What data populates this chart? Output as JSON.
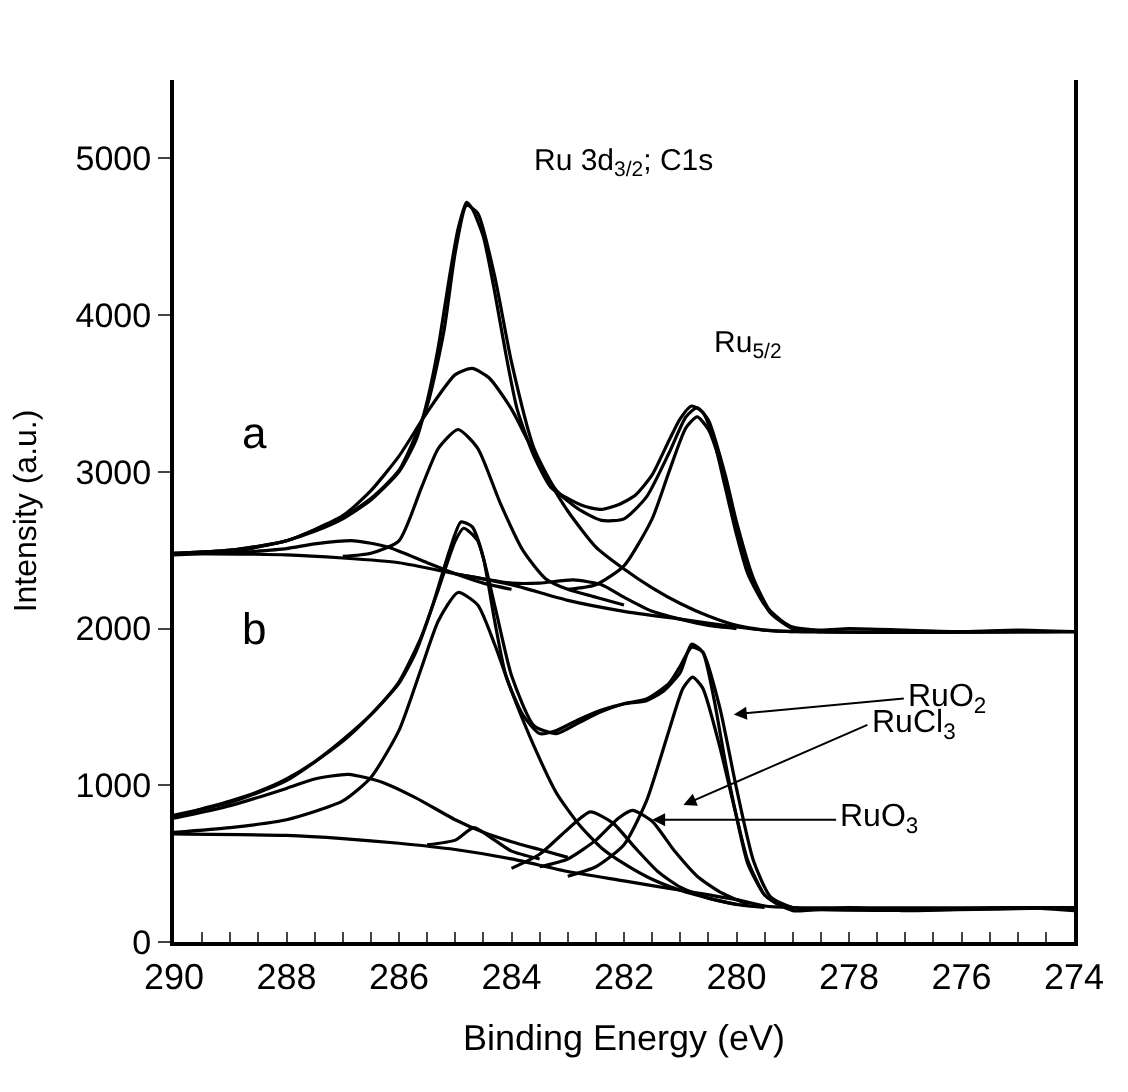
{
  "chart_data": {
    "type": "line",
    "xlabel": "Binding Energy (eV)",
    "ylabel": "Intensity (a.u.)",
    "xlim": [
      290,
      274
    ],
    "ylim": [
      0,
      5500
    ],
    "xticks": [
      290,
      {
        "value": 289.5,
        "label": null
      },
      {
        "value": 289,
        "label": null
      },
      {
        "value": 288.5,
        "label": null
      },
      288,
      {
        "value": 287.5,
        "label": null
      },
      {
        "value": 287,
        "label": null
      },
      {
        "value": 286.5,
        "label": null
      },
      286,
      {
        "value": 285.5,
        "label": null
      },
      {
        "value": 285,
        "label": null
      },
      {
        "value": 284.5,
        "label": null
      },
      284,
      {
        "value": 283.5,
        "label": null
      },
      {
        "value": 283,
        "label": null
      },
      {
        "value": 282.5,
        "label": null
      },
      282,
      {
        "value": 281.5,
        "label": null
      },
      {
        "value": 281,
        "label": null
      },
      {
        "value": 280.5,
        "label": null
      },
      280,
      {
        "value": 279.5,
        "label": null
      },
      {
        "value": 279,
        "label": null
      },
      {
        "value": 278.5,
        "label": null
      },
      278,
      {
        "value": 277.5,
        "label": null
      },
      {
        "value": 277,
        "label": null
      },
      {
        "value": 276.5,
        "label": null
      },
      276,
      {
        "value": 275.5,
        "label": null
      },
      {
        "value": 275,
        "label": null
      },
      {
        "value": 274.5,
        "label": null
      },
      274
    ],
    "yticks": [
      0,
      1000,
      2000,
      3000,
      4000,
      5000
    ],
    "marker": "none",
    "line_style": "solid",
    "annotations": [
      "Ru 3d$_{3/2}$; C1s",
      "Ru$_{5/2}$",
      "a",
      "b",
      "RuO$_{2}$",
      "RuCl$_{3}$",
      {
        "text": "RuO$_{3}$",
        "x": 281.5,
        "y": 780
      }
    ],
    "series": [
      {
        "color": "#000000",
        "x": [
          290,
          289,
          288.5,
          288,
          287.5,
          287,
          286.5,
          286,
          285.7,
          285.5,
          285.3,
          285.1,
          284.95,
          284.8,
          284.7,
          284.5,
          284.3,
          284.1,
          283.9,
          283.6,
          283.3,
          283,
          282.7,
          282.4,
          282.1,
          281.8,
          281.5,
          281.2,
          281,
          280.8,
          280.6,
          280.4,
          280.2,
          280,
          279.8,
          279.5,
          279.2,
          279,
          278.5,
          278,
          277,
          276,
          275,
          274
        ],
        "values": [
          2470,
          2490,
          2520,
          2560,
          2620,
          2700,
          2820,
          3000,
          3200,
          3450,
          3800,
          4250,
          4550,
          4720,
          4680,
          4500,
          4150,
          3750,
          3400,
          3100,
          2900,
          2830,
          2780,
          2760,
          2790,
          2850,
          2980,
          3200,
          3340,
          3420,
          3380,
          3200,
          2900,
          2600,
          2350,
          2150,
          2050,
          2010,
          1990,
          2000,
          1990,
          1980,
          1990,
          1980
        ]
      },
      {
        "color": "#000000",
        "x": [
          290,
          289,
          288,
          287,
          286.5,
          286,
          285.5,
          285.2,
          285,
          284.8,
          284.6,
          284.3,
          284,
          283.6,
          283.2,
          282.8,
          282.4,
          282,
          281.6,
          281.2,
          280.9,
          280.7,
          280.5,
          280.2,
          280,
          279.7,
          279.4,
          279,
          278.5,
          274
        ],
        "values": [
          2480,
          2500,
          2560,
          2710,
          2830,
          3010,
          3420,
          3900,
          4400,
          4700,
          4650,
          4250,
          3700,
          3150,
          2880,
          2760,
          2690,
          2700,
          2840,
          3120,
          3350,
          3410,
          3330,
          2980,
          2680,
          2320,
          2110,
          2000,
          1980,
          1980
        ]
      },
      {
        "color": "#000000",
        "x": [
          290,
          289,
          288,
          287,
          286.5,
          286,
          285.5,
          285,
          284.7,
          284.4,
          284,
          283.5,
          283,
          282.5,
          282,
          281.5,
          281,
          280.5,
          280,
          279.5,
          279
        ],
        "values": [
          2480,
          2500,
          2560,
          2720,
          2880,
          3100,
          3380,
          3620,
          3660,
          3600,
          3400,
          3050,
          2750,
          2520,
          2380,
          2260,
          2160,
          2080,
          2020,
          1990,
          1980
        ]
      },
      {
        "color": "#000000",
        "x": [
          287,
          286.5,
          286,
          285.6,
          285.3,
          284.95,
          284.6,
          284.2,
          283.8,
          283.4,
          283,
          282.5,
          282
        ],
        "values": [
          2460,
          2480,
          2560,
          2900,
          3150,
          3270,
          3150,
          2800,
          2500,
          2320,
          2250,
          2200,
          2150
        ]
      },
      {
        "color": "#000000",
        "x": [
          283,
          282.5,
          282,
          281.5,
          281.2,
          280.9,
          280.7,
          280.5,
          280.2,
          280,
          279.7,
          279.4,
          279,
          278.5
        ],
        "values": [
          2250,
          2280,
          2400,
          2700,
          3000,
          3280,
          3350,
          3270,
          2950,
          2650,
          2300,
          2100,
          2000,
          1980
        ]
      },
      {
        "color": "#000000",
        "x": [
          289,
          288,
          287.5,
          286.8,
          286.2,
          285.5,
          285,
          284.5,
          284
        ],
        "values": [
          2480,
          2510,
          2540,
          2560,
          2520,
          2420,
          2350,
          2290,
          2250
        ]
      },
      {
        "color": "#000000",
        "x": [
          285,
          284,
          283.5,
          282.9,
          282.4,
          282,
          281.5,
          281,
          280.5,
          280
        ],
        "values": [
          2350,
          2290,
          2290,
          2310,
          2280,
          2200,
          2110,
          2060,
          2020,
          2000
        ]
      },
      {
        "color": "#000000",
        "x": [
          290,
          288,
          287,
          286,
          285,
          284,
          283,
          282,
          281,
          280,
          279.5,
          279,
          274
        ],
        "values": [
          2480,
          2470,
          2450,
          2420,
          2350,
          2280,
          2180,
          2110,
          2060,
          2010,
          1990,
          1980,
          1980
        ]
      },
      {
        "color": "#000000",
        "x": [
          290,
          289.5,
          289,
          288.5,
          288,
          287.5,
          287,
          286.5,
          286,
          285.7,
          285.4,
          285.1,
          284.9,
          284.7,
          284.5,
          284.3,
          284.1,
          283.8,
          283.5,
          283.2,
          282.8,
          282.4,
          282,
          281.6,
          281.3,
          281,
          280.8,
          280.6,
          280.4,
          280.2,
          280,
          279.8,
          279.5,
          279.2,
          279,
          278,
          277,
          276,
          275,
          274
        ],
        "values": [
          800,
          850,
          900,
          960,
          1040,
          1150,
          1290,
          1450,
          1650,
          1850,
          2150,
          2500,
          2680,
          2650,
          2450,
          2050,
          1700,
          1450,
          1330,
          1350,
          1420,
          1480,
          1520,
          1540,
          1600,
          1720,
          1900,
          1850,
          1550,
          1150,
          800,
          500,
          300,
          230,
          200,
          220,
          200,
          210,
          220,
          200
        ]
      },
      {
        "color": "#000000",
        "x": [
          290,
          289,
          288,
          287,
          286.5,
          286,
          285.6,
          285.3,
          285,
          284.85,
          284.6,
          284.3,
          284,
          283.6,
          283.2,
          282.8,
          282.4,
          282,
          281.6,
          281.2,
          281,
          280.8,
          280.6,
          280.3,
          280,
          279.7,
          279.4,
          279,
          274
        ],
        "values": [
          810,
          890,
          1030,
          1280,
          1450,
          1660,
          1950,
          2250,
          2560,
          2640,
          2560,
          2150,
          1700,
          1380,
          1330,
          1400,
          1470,
          1520,
          1550,
          1650,
          1760,
          1880,
          1850,
          1500,
          980,
          520,
          290,
          220,
          220
        ]
      },
      {
        "color": "#000000",
        "x": [
          290,
          289,
          288,
          287,
          286.5,
          286,
          285.6,
          285.3,
          284.95,
          284.6,
          284.3,
          284,
          283.6,
          283.2,
          282.8,
          282.4,
          282,
          281.5,
          281,
          280.5,
          280,
          279.5
        ],
        "values": [
          700,
          730,
          780,
          900,
          1050,
          1350,
          1750,
          2050,
          2230,
          2150,
          1900,
          1600,
          1250,
          950,
          750,
          600,
          500,
          400,
          330,
          280,
          240,
          220
        ]
      },
      {
        "color": "#000000",
        "x": [
          290,
          289,
          288,
          287.5,
          286.9,
          286.3,
          285.7,
          285,
          284.5,
          284,
          283.5,
          283
        ],
        "values": [
          790,
          870,
          980,
          1040,
          1070,
          1020,
          920,
          780,
          700,
          640,
          590,
          540
        ]
      },
      {
        "color": "#000000",
        "x": [
          285.5,
          285,
          284.67,
          284.3,
          284,
          283.5
        ],
        "values": [
          620,
          650,
          730,
          650,
          580,
          530
        ]
      },
      {
        "color": "#000000",
        "x": [
          284,
          283.5,
          283,
          282.6,
          282.2,
          281.8,
          281.4,
          281,
          280.5,
          280
        ],
        "values": [
          470,
          560,
          720,
          830,
          760,
          600,
          450,
          350,
          280,
          240
        ]
      },
      {
        "color": "#000000",
        "x": [
          283.5,
          283,
          282.5,
          282.1,
          281.85,
          281.5,
          281.1,
          280.7,
          280.3,
          279.8
        ],
        "values": [
          480,
          530,
          650,
          790,
          840,
          770,
          580,
          420,
          320,
          240
        ]
      },
      {
        "color": "#000000",
        "x": [
          283,
          282.5,
          282,
          281.6,
          281.2,
          280.95,
          280.78,
          280.6,
          280.3,
          280,
          279.8,
          279.5,
          279.2,
          279
        ],
        "values": [
          420,
          480,
          620,
          900,
          1350,
          1620,
          1690,
          1620,
          1250,
          800,
          520,
          300,
          230,
          220
        ]
      },
      {
        "color": "#000000",
        "x": [
          290,
          288,
          287,
          286,
          285,
          284,
          283,
          282,
          281,
          280,
          279.5,
          279,
          274
        ],
        "values": [
          690,
          680,
          660,
          630,
          590,
          530,
          450,
          390,
          330,
          270,
          230,
          220,
          220
        ]
      }
    ]
  }
}
